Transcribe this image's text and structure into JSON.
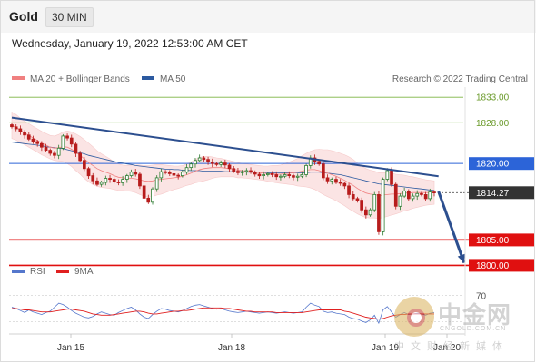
{
  "header": {
    "instrument": "Gold",
    "timeframe": "30 MIN",
    "datetime": "Wednesday, January 19, 2022 12:53:00 AM CET"
  },
  "legend": {
    "items": [
      {
        "label": "MA 20 + Bollinger Bands",
        "color": "#f08080"
      },
      {
        "label": "MA 50",
        "color": "#2c5aa0"
      }
    ],
    "research": "Research © 2022 Trading Central"
  },
  "rsi_legend": {
    "items": [
      {
        "label": "RSI",
        "color": "#5577cc"
      },
      {
        "label": "9MA",
        "color": "#e02020"
      }
    ]
  },
  "colors": {
    "up_candle": "#2e7d32",
    "down_candle": "#b71c1c",
    "trendline": "#2c4f8f",
    "support": "#e01010",
    "resistance": "#7cb342",
    "pivot": "#2c64d8",
    "bands_fill": "#fbe4e4"
  },
  "watermark": {
    "brand": "中金网",
    "url": "CNGOLD.COM.CN",
    "tagline": "中文财经新媒体"
  },
  "chart_data": [
    {
      "type": "candlestick",
      "title": "Gold 30 MIN",
      "y_range": [
        1801.5,
        1835
      ],
      "x_labels": [
        "Jan 15",
        "Jan 18",
        "Jan 19",
        "Jan 20"
      ],
      "price_levels": [
        {
          "value": 1833.0,
          "label": "1833.00",
          "role": "resistance"
        },
        {
          "value": 1828.0,
          "label": "1828.00",
          "role": "resistance"
        },
        {
          "value": 1820.0,
          "label": "1820.00",
          "role": "pivot"
        },
        {
          "value": 1814.27,
          "label": "1814.27",
          "role": "last"
        },
        {
          "value": 1805.0,
          "label": "1805.00",
          "role": "support"
        },
        {
          "value": 1800.0,
          "label": "1800.00",
          "role": "support"
        }
      ],
      "trendline": {
        "from": [
          0,
          1829
        ],
        "to": [
          100,
          1817.5
        ]
      },
      "forecast_arrow": {
        "from": [
          100,
          1814.5
        ],
        "to": [
          106,
          1800.5
        ]
      },
      "close": [
        1827.2,
        1826.8,
        1826.2,
        1825.6,
        1824.8,
        1824.3,
        1823.9,
        1823.2,
        1822.6,
        1822.0,
        1821.6,
        1823.0,
        1825.4,
        1825.0,
        1823.8,
        1822.0,
        1820.6,
        1819.0,
        1817.6,
        1816.6,
        1815.9,
        1816.3,
        1817.1,
        1816.9,
        1816.4,
        1816.2,
        1816.9,
        1817.6,
        1818.3,
        1817.9,
        1815.6,
        1813.2,
        1812.4,
        1815.0,
        1817.2,
        1818.4,
        1818.2,
        1818.0,
        1817.7,
        1817.6,
        1818.3,
        1819.2,
        1819.9,
        1820.6,
        1821.1,
        1820.8,
        1820.3,
        1820.0,
        1819.8,
        1820.1,
        1819.7,
        1819.0,
        1818.5,
        1818.2,
        1818.4,
        1818.6,
        1818.3,
        1817.9,
        1817.6,
        1817.8,
        1818.0,
        1817.8,
        1817.4,
        1817.5,
        1817.8,
        1817.6,
        1817.3,
        1817.5,
        1817.8,
        1819.6,
        1821.1,
        1820.4,
        1819.9,
        1817.2,
        1816.6,
        1816.9,
        1816.3,
        1816.1,
        1815.6,
        1813.9,
        1813.1,
        1812.8,
        1810.9,
        1809.9,
        1810.9,
        1813.9,
        1806.6,
        1816.9,
        1818.6,
        1815.9,
        1811.6,
        1813.6,
        1814.6,
        1813.1,
        1813.6,
        1814.1,
        1813.9,
        1813.1,
        1814.4,
        1814.27
      ],
      "ma20": [
        1827.5,
        1827.1,
        1826.5,
        1826.0,
        1825.5,
        1825.0,
        1824.5,
        1824.0,
        1823.6,
        1823.2,
        1823.0,
        1823.1,
        1823.3,
        1823.2,
        1822.8,
        1822.2,
        1821.6,
        1820.9,
        1820.2,
        1819.6,
        1819.0,
        1818.6,
        1818.3,
        1818.0,
        1817.6,
        1817.3,
        1817.2,
        1817.1,
        1817.1,
        1817.0,
        1816.8,
        1816.6,
        1816.5,
        1816.6,
        1816.8,
        1816.9,
        1817.0,
        1817.1,
        1817.2,
        1817.3,
        1817.5,
        1817.8,
        1818.1,
        1818.5,
        1818.8,
        1819.0,
        1819.1,
        1819.2,
        1819.2,
        1819.2,
        1819.1,
        1819.0,
        1818.9,
        1818.7,
        1818.6,
        1818.5,
        1818.4,
        1818.3,
        1818.2,
        1818.1,
        1818.0,
        1818.0,
        1817.9,
        1817.9,
        1818.0,
        1818.1,
        1818.2,
        1818.3,
        1818.5,
        1818.7,
        1818.8,
        1818.8,
        1818.6,
        1818.3,
        1818.1,
        1817.8,
        1817.5,
        1817.1,
        1816.7,
        1816.2,
        1815.7,
        1815.1,
        1814.6,
        1814.2,
        1814.0,
        1813.9,
        1813.7,
        1813.8,
        1813.9,
        1814.0,
        1814.0,
        1814.1,
        1814.2,
        1814.2,
        1814.3,
        1814.3,
        1814.3,
        1814.3,
        1814.3,
        1814.3
      ],
      "ma50": [
        1824.2,
        1824.1,
        1824.0,
        1823.9,
        1823.8,
        1823.7,
        1823.6,
        1823.5,
        1823.3,
        1823.2,
        1823.1,
        1823.0,
        1822.9,
        1822.7,
        1822.5,
        1822.3,
        1822.1,
        1821.9,
        1821.6,
        1821.4,
        1821.2,
        1821.0,
        1820.8,
        1820.6,
        1820.4,
        1820.2,
        1820.1,
        1819.9,
        1819.8,
        1819.6,
        1819.5,
        1819.4,
        1819.3,
        1819.2,
        1819.1,
        1819.0,
        1818.9,
        1818.9,
        1818.8,
        1818.8,
        1818.7,
        1818.7,
        1818.6,
        1818.6,
        1818.6,
        1818.5,
        1818.5,
        1818.5,
        1818.5,
        1818.5,
        1818.4,
        1818.4,
        1818.4,
        1818.4,
        1818.4,
        1818.3,
        1818.3,
        1818.3,
        1818.3,
        1818.3,
        1818.2,
        1818.2,
        1818.2,
        1818.2,
        1818.2,
        1818.2,
        1818.2,
        1818.2,
        1818.2,
        1818.2,
        1818.3,
        1818.3,
        1818.3,
        1818.2,
        1818.1,
        1818.0,
        1817.9,
        1817.8,
        1817.6,
        1817.4,
        1817.2,
        1817.0,
        1816.8,
        1816.6,
        1816.4,
        1816.2,
        1816.0,
        1815.9,
        1815.8,
        1815.7,
        1815.6,
        1815.5,
        1815.4,
        1815.3,
        1815.2,
        1815.1,
        1815.0,
        1814.9,
        1814.8,
        1814.7
      ],
      "bb_width": [
        2.6,
        2.5,
        2.4,
        2.3,
        2.3,
        2.3,
        2.3,
        2.3,
        2.3,
        2.3,
        2.4,
        2.6,
        2.9,
        3.2,
        3.4,
        3.6,
        3.7,
        3.8,
        3.8,
        3.7,
        3.5,
        3.3,
        3.1,
        2.9,
        2.7,
        2.6,
        2.5,
        2.5,
        2.6,
        2.7,
        2.9,
        3.0,
        3.1,
        3.1,
        3.0,
        2.9,
        2.7,
        2.5,
        2.3,
        2.2,
        2.1,
        2.1,
        2.2,
        2.3,
        2.4,
        2.4,
        2.3,
        2.1,
        1.9,
        1.8,
        1.7,
        1.6,
        1.5,
        1.5,
        1.4,
        1.4,
        1.4,
        1.4,
        1.4,
        1.4,
        1.5,
        1.6,
        1.7,
        1.8,
        2.0,
        2.2,
        2.4,
        2.7,
        3.0,
        3.3,
        3.6,
        3.9,
        4.2,
        4.4,
        4.6,
        4.7,
        4.8,
        4.9,
        5.0,
        5.1,
        5.1,
        5.0,
        4.9,
        4.8,
        4.7,
        4.6,
        4.5,
        4.4,
        4.3,
        4.1,
        3.9,
        3.7,
        3.5,
        3.3,
        3.1,
        2.9,
        2.7,
        2.5,
        2.4,
        2.3
      ]
    },
    {
      "type": "line",
      "title": "RSI",
      "y_range": [
        20,
        80
      ],
      "y_labels": [
        70
      ],
      "series": [
        {
          "name": "RSI",
          "values": [
            52,
            50,
            47,
            44,
            48,
            45,
            43,
            41,
            44,
            46,
            52,
            58,
            56,
            52,
            47,
            43,
            40,
            37,
            36,
            38,
            42,
            45,
            43,
            41,
            40,
            44,
            47,
            50,
            52,
            48,
            42,
            37,
            35,
            41,
            46,
            50,
            49,
            47,
            46,
            45,
            47,
            50,
            53,
            55,
            56,
            54,
            52,
            50,
            49,
            50,
            48,
            46,
            45,
            44,
            45,
            46,
            45,
            44,
            43,
            44,
            45,
            44,
            43,
            44,
            45,
            44,
            43,
            44,
            45,
            52,
            58,
            55,
            53,
            46,
            44,
            45,
            43,
            42,
            41,
            37,
            35,
            34,
            31,
            29,
            33,
            40,
            28,
            48,
            53,
            45,
            37,
            41,
            44,
            41,
            42,
            43,
            42,
            40,
            43,
            44
          ]
        },
        {
          "name": "9MA",
          "values": [
            50,
            50,
            49,
            48,
            48,
            47,
            46,
            45,
            45,
            45,
            46,
            47,
            48,
            49,
            49,
            48,
            47,
            46,
            44,
            42,
            41,
            40,
            40,
            40,
            41,
            42,
            43,
            44,
            45,
            46,
            46,
            45,
            43,
            42,
            42,
            43,
            44,
            45,
            46,
            46,
            47,
            47,
            48,
            49,
            50,
            51,
            51,
            51,
            51,
            51,
            50,
            50,
            49,
            48,
            47,
            46,
            46,
            45,
            45,
            45,
            45,
            45,
            44,
            44,
            44,
            44,
            44,
            44,
            44,
            45,
            46,
            47,
            48,
            48,
            48,
            48,
            48,
            48,
            46,
            45,
            43,
            41,
            39,
            37,
            36,
            35,
            34,
            35,
            37,
            39,
            40,
            41,
            41,
            42,
            42,
            42,
            42,
            42,
            42,
            42
          ]
        }
      ]
    }
  ]
}
